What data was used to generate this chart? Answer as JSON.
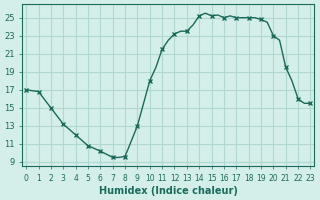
{
  "x": [
    0,
    1,
    2,
    3,
    4,
    5,
    6,
    7,
    7.5,
    8,
    9,
    10,
    10.5,
    11,
    11.5,
    12,
    12.5,
    13,
    13.5,
    14,
    14.5,
    15,
    15.5,
    16,
    16.5,
    17,
    17.5,
    18,
    18.5,
    19,
    19.5,
    20,
    20.5,
    21,
    21.5,
    22,
    22.5,
    23
  ],
  "y": [
    17,
    16.8,
    15,
    13.2,
    12.0,
    10.8,
    10.2,
    9.5,
    9.5,
    9.6,
    13,
    18,
    19.5,
    21.5,
    22.5,
    23.2,
    23.5,
    23.5,
    24.2,
    25.2,
    25.5,
    25.2,
    25.3,
    25.0,
    25.2,
    25.0,
    25.0,
    25.0,
    25.0,
    24.8,
    24.5,
    23.0,
    22.5,
    19.5,
    18.0,
    16.0,
    15.5,
    15.5
  ],
  "marker_x": [
    0,
    1,
    2,
    3,
    4,
    5,
    6,
    7,
    8,
    9,
    10,
    11,
    12,
    13,
    14,
    15,
    16,
    17,
    18,
    19,
    20,
    21,
    22,
    23
  ],
  "marker_y": [
    17,
    16.8,
    15,
    13.2,
    12.0,
    10.8,
    10.2,
    9.5,
    9.6,
    13,
    18,
    21.5,
    23.2,
    23.5,
    25.2,
    25.2,
    25.0,
    25.0,
    25.0,
    24.8,
    23.0,
    19.5,
    16.0,
    15.5
  ],
  "line_color": "#1a6b5a",
  "marker_color": "#1a6b5a",
  "bg_color": "#d4eeea",
  "grid_color": "#b0d8d0",
  "xlabel": "Humidex (Indice chaleur)",
  "yticks": [
    9,
    11,
    13,
    15,
    17,
    19,
    21,
    23,
    25
  ],
  "xticks": [
    0,
    1,
    2,
    3,
    4,
    5,
    6,
    7,
    8,
    9,
    10,
    11,
    12,
    13,
    14,
    15,
    16,
    17,
    18,
    19,
    20,
    21,
    22,
    23
  ],
  "xlim": [
    -0.3,
    23.3
  ],
  "ylim": [
    8.5,
    26.5
  ]
}
